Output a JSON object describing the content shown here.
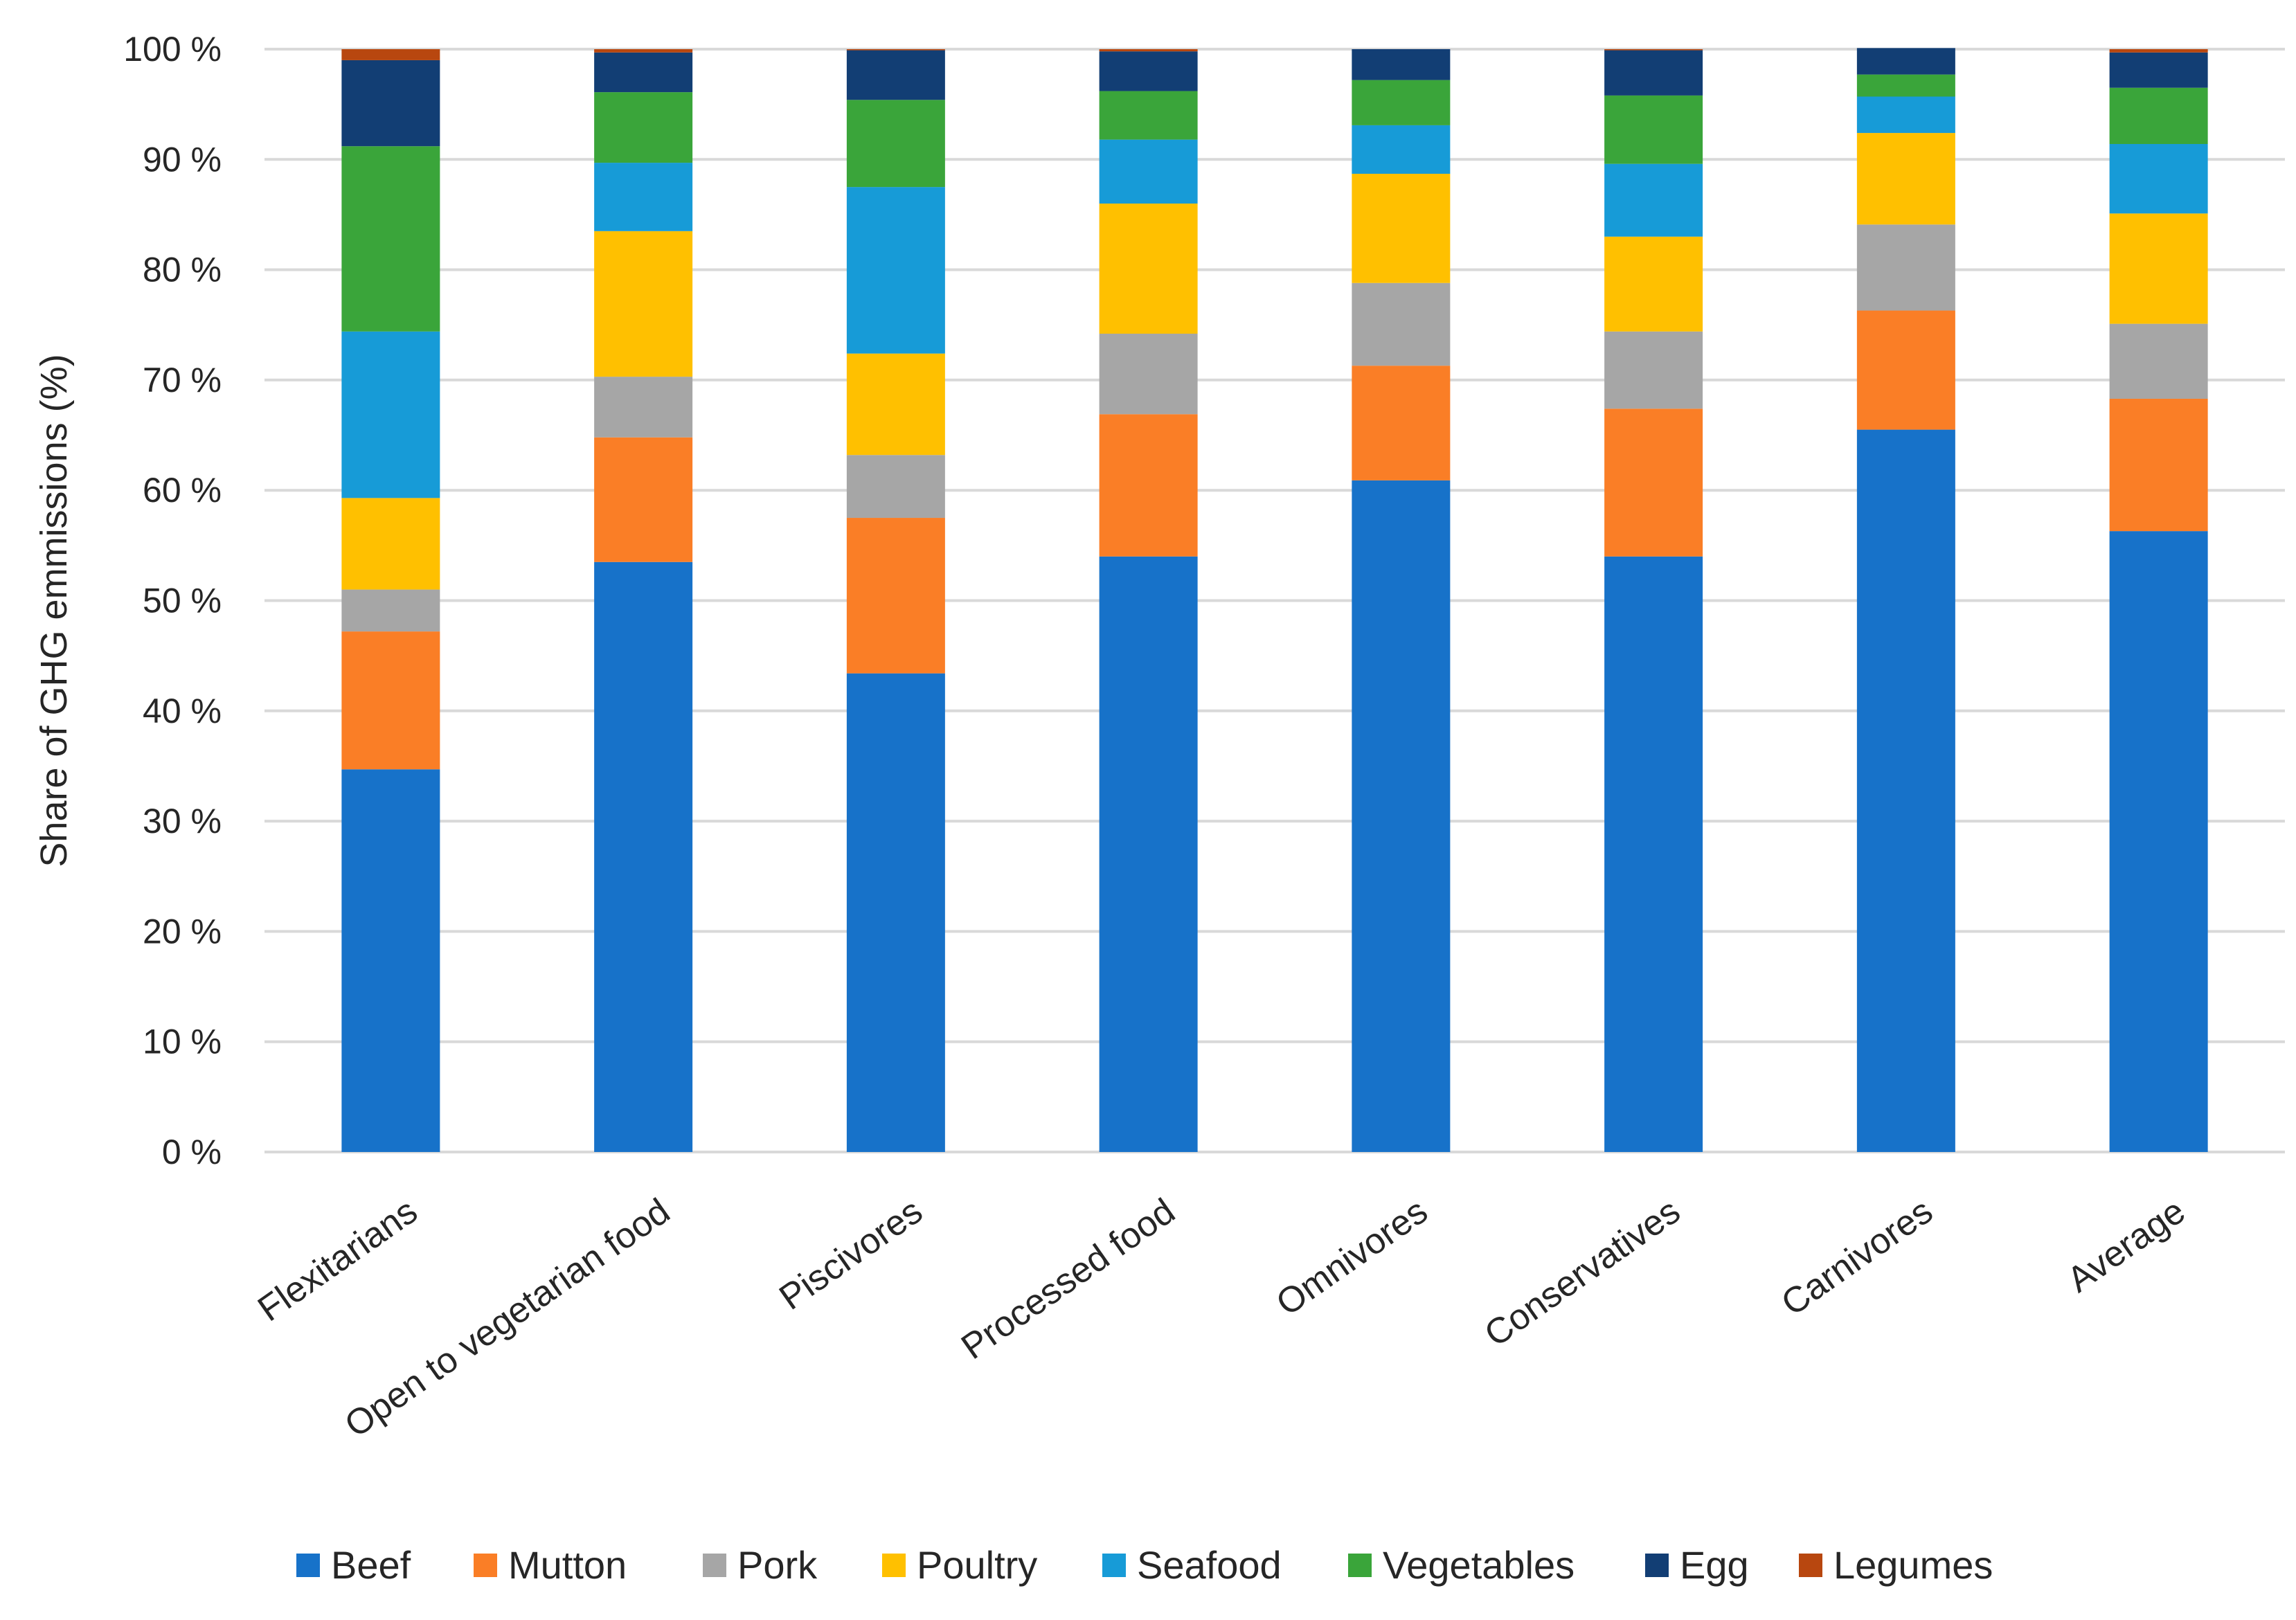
{
  "chart_data": {
    "type": "bar",
    "stacked": true,
    "title": "",
    "xlabel": "",
    "ylabel": "Share of GHG emmissions (%)",
    "ylim": [
      0,
      100
    ],
    "yticks": [
      0,
      10,
      20,
      30,
      40,
      50,
      60,
      70,
      80,
      90,
      100
    ],
    "ytick_labels": [
      "0 %",
      "10 %",
      "20 %",
      "30 %",
      "40 %",
      "50 %",
      "60 %",
      "70 %",
      "80 %",
      "90 %",
      "100 %"
    ],
    "grid": true,
    "legend_position": "bottom",
    "categories": [
      "Flexitarians",
      "Open to vegetarian food",
      "Piscivores",
      "Processed food",
      "Omnivores",
      "Conservatives",
      "Carnivores",
      "Average"
    ],
    "series": [
      {
        "name": "Beef",
        "color": "#1772c9",
        "values": [
          34.7,
          53.5,
          43.4,
          54.0,
          60.9,
          54.0,
          65.5,
          56.3
        ]
      },
      {
        "name": "Mutton",
        "color": "#fa7e26",
        "values": [
          12.5,
          11.3,
          14.1,
          12.9,
          10.4,
          13.4,
          10.8,
          12.0
        ]
      },
      {
        "name": "Pork",
        "color": "#a6a6a6",
        "values": [
          3.8,
          5.5,
          5.7,
          7.3,
          7.5,
          7.0,
          7.8,
          6.8
        ]
      },
      {
        "name": "Poultry",
        "color": "#ffc000",
        "values": [
          8.3,
          13.2,
          9.2,
          11.8,
          9.9,
          8.6,
          8.3,
          10.0
        ]
      },
      {
        "name": "Seafood",
        "color": "#179bd7",
        "values": [
          15.1,
          6.2,
          15.1,
          5.8,
          4.4,
          6.6,
          3.3,
          6.3
        ]
      },
      {
        "name": "Vegetables",
        "color": "#3aa53a",
        "values": [
          16.8,
          6.4,
          7.9,
          4.4,
          4.1,
          6.2,
          2.0,
          5.1
        ]
      },
      {
        "name": "Egg",
        "color": "#123e74",
        "values": [
          7.8,
          3.6,
          4.5,
          3.6,
          2.8,
          4.1,
          2.4,
          3.2
        ]
      },
      {
        "name": "Legumes",
        "color": "#b8470f",
        "values": [
          1.0,
          0.3,
          0.1,
          0.2,
          0.0,
          0.1,
          0.0,
          0.3
        ]
      }
    ]
  }
}
